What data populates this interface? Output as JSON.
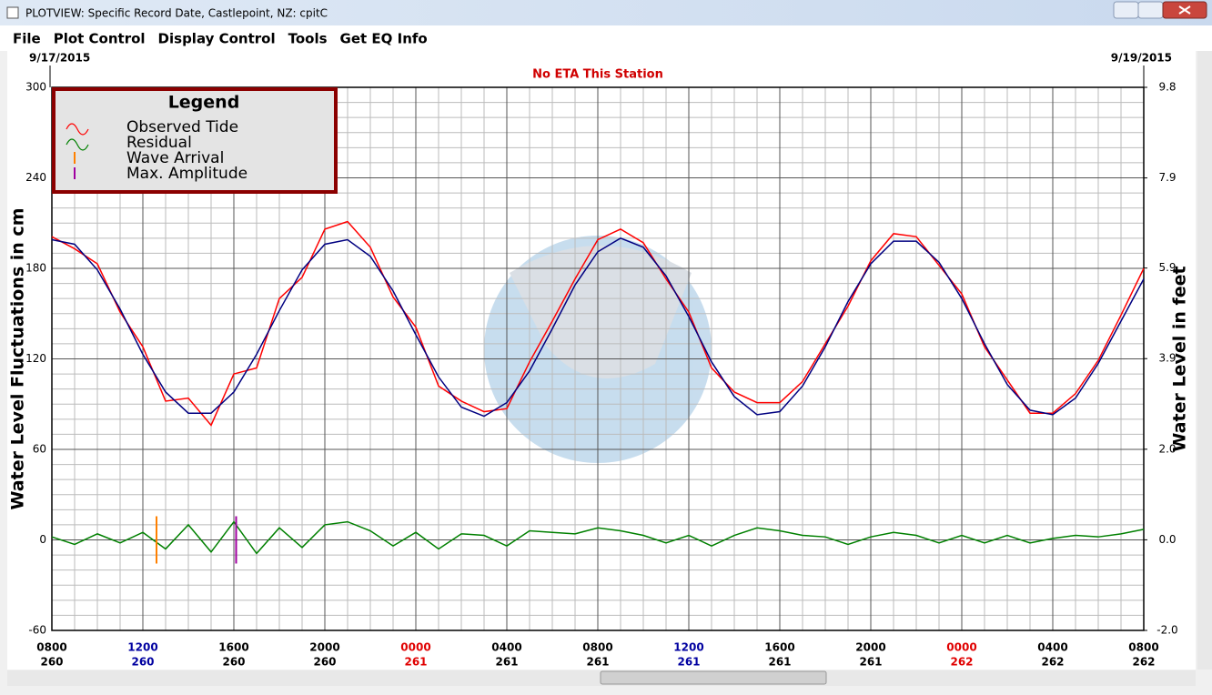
{
  "window": {
    "title": "PLOTVIEW: Specific Record Date, Castlepoint, NZ: cpitC",
    "menu": [
      "File",
      "Plot Control",
      "Display Control",
      "Tools",
      "Get EQ Info"
    ]
  },
  "chart_data": {
    "type": "line",
    "start_date": "9/17/2015",
    "end_date": "9/19/2015",
    "annotation": "No ETA This Station",
    "ylabel": "Water Level Fluctuations in cm",
    "y2label": "Water Level in feet",
    "x": [
      0,
      1,
      2,
      3,
      4,
      5,
      6,
      7,
      8,
      9,
      10,
      11,
      12,
      13,
      14,
      15,
      16,
      17,
      18,
      19,
      20,
      21,
      22,
      23,
      24,
      25,
      26,
      27,
      28,
      29,
      30,
      31,
      32,
      33,
      34,
      35,
      36,
      37,
      38,
      39,
      40,
      41,
      42,
      43,
      44,
      45,
      46,
      47,
      48
    ],
    "xlim": [
      0,
      48
    ],
    "xticks": [
      {
        "value": 0,
        "label": "0800"
      },
      {
        "value": 4,
        "label": "1200"
      },
      {
        "value": 8,
        "label": "1600"
      },
      {
        "value": 12,
        "label": "2000"
      },
      {
        "value": 16,
        "label": "0000"
      },
      {
        "value": 20,
        "label": "0400"
      },
      {
        "value": 24,
        "label": "0800"
      },
      {
        "value": 28,
        "label": "1200"
      },
      {
        "value": 32,
        "label": "1600"
      },
      {
        "value": 36,
        "label": "2000"
      },
      {
        "value": 40,
        "label": "0000"
      },
      {
        "value": 44,
        "label": "0400"
      },
      {
        "value": 48,
        "label": "0800"
      }
    ],
    "xtick_days": [
      "260",
      "260",
      "260",
      "260",
      "261",
      "261",
      "261",
      "261",
      "261",
      "261",
      "262",
      "262",
      "262"
    ],
    "xtick_colors": [
      "#000000",
      "#0000a0",
      "#000000",
      "#000000",
      "#e00000",
      "#000000",
      "#000000",
      "#0000a0",
      "#000000",
      "#000000",
      "#e00000",
      "#000000",
      "#000000"
    ],
    "ylim": [
      -60,
      300
    ],
    "yticks": [
      -60,
      0,
      60,
      120,
      180,
      240,
      300
    ],
    "y2lim": [
      -1.97,
      9.84
    ],
    "y2ticks": [
      {
        "value": -1.97,
        "label": "-2.0"
      },
      {
        "value": 0,
        "label": "0.0"
      },
      {
        "value": 1.97,
        "label": "2.0"
      },
      {
        "value": 3.94,
        "label": "3.9"
      },
      {
        "value": 5.91,
        "label": "5.9"
      },
      {
        "value": 7.87,
        "label": "7.9"
      },
      {
        "value": 9.84,
        "label": "9.8"
      }
    ],
    "grid": true,
    "legend_title": "Legend",
    "legend": "upper left",
    "series": [
      {
        "name": "Observed Tide",
        "color": "#ff0000",
        "values": [
          201,
          193,
          183,
          151,
          128,
          92,
          94,
          76,
          110,
          114,
          160,
          174,
          206,
          211,
          194,
          161,
          141,
          102,
          92,
          85,
          87,
          118,
          145,
          173,
          199,
          206,
          197,
          173,
          151,
          114,
          98,
          91,
          91,
          105,
          130,
          155,
          185,
          203,
          201,
          182,
          163,
          128,
          106,
          84,
          84,
          97,
          119,
          149,
          180
        ]
      },
      {
        "color": "#000080",
        "values": [
          199,
          196,
          179,
          153,
          123,
          98,
          84,
          84,
          98,
          123,
          152,
          179,
          196,
          199,
          188,
          165,
          136,
          108,
          88,
          82,
          91,
          112,
          140,
          169,
          191,
          200,
          194,
          175,
          148,
          118,
          95,
          83,
          85,
          102,
          128,
          158,
          183,
          198,
          198,
          184,
          160,
          130,
          103,
          86,
          83,
          94,
          117,
          145,
          173
        ]
      },
      {
        "name": "Residual",
        "color": "#008000",
        "values": [
          2,
          -3,
          4,
          -2,
          5,
          -6,
          10,
          -8,
          12,
          -9,
          8,
          -5,
          10,
          12,
          6,
          -4,
          5,
          -6,
          4,
          3,
          -4,
          6,
          5,
          4,
          8,
          6,
          3,
          -2,
          3,
          -4,
          3,
          8,
          6,
          3,
          2,
          -3,
          2,
          5,
          3,
          -2,
          3,
          -2,
          3,
          -2,
          1,
          3,
          2,
          4,
          7
        ]
      }
    ],
    "markers": [
      {
        "name": "Wave Arrival",
        "color": "#ff8000",
        "x": 4.6
      },
      {
        "name": "Max. Amplitude",
        "color": "#a000a0",
        "x": 8.1
      }
    ]
  }
}
